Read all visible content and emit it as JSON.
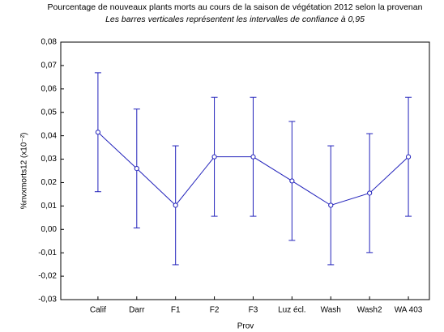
{
  "chart_data": {
    "type": "line",
    "title": "Pourcentage de nouveaux plants morts au cours de la saison de végétation 2012 selon la provenan",
    "subtitle": "Les barres verticales représentent les intervalles de confiance à 0,95",
    "x_label": "Prov",
    "y_label": "%nvxmorts12 (x10⁻²)",
    "categories": [
      "Calif",
      "Darr",
      "F1",
      "F2",
      "F3",
      "Luz écl.",
      "Wash",
      "Wash2",
      "WA 403"
    ],
    "series": [
      {
        "color": "#2222bb",
        "values": [
          0.0415,
          0.026,
          0.0103,
          0.031,
          0.031,
          0.0207,
          0.0103,
          0.0155,
          0.031
        ],
        "errors": [
          0.0254,
          0.0254,
          0.0254,
          0.0254,
          0.0254,
          0.0254,
          0.0254,
          0.0254,
          0.0254
        ]
      }
    ],
    "ylim": [
      -0.03,
      0.08
    ],
    "yticks": [
      {
        "value": -0.03,
        "label": "-0,03"
      },
      {
        "value": -0.02,
        "label": "-0,02"
      },
      {
        "value": -0.01,
        "label": "-0,01"
      },
      {
        "value": 0,
        "label": "0,00"
      },
      {
        "value": 0.01,
        "label": "0,01"
      },
      {
        "value": 0.02,
        "label": "0,02"
      },
      {
        "value": 0.03,
        "label": "0,03"
      },
      {
        "value": 0.04,
        "label": "0,04"
      },
      {
        "value": 0.05,
        "label": "0,05"
      },
      {
        "value": 0.06,
        "label": "0,06"
      },
      {
        "value": 0.07,
        "label": "0,07"
      },
      {
        "value": 0.08,
        "label": "0,08"
      }
    ]
  }
}
